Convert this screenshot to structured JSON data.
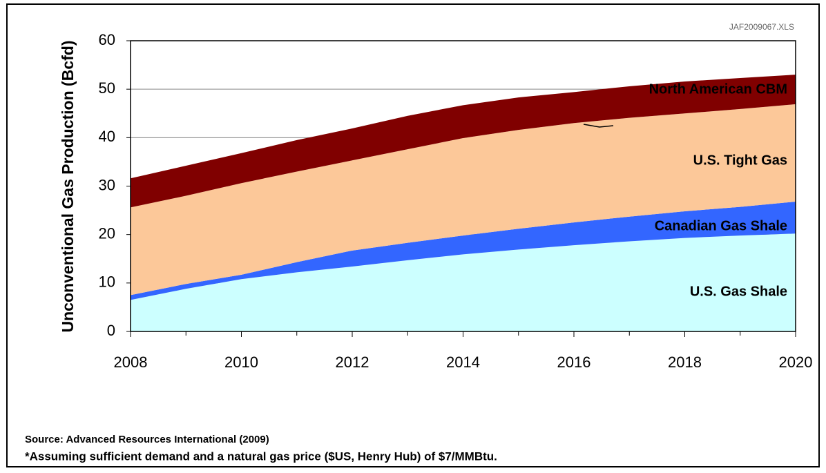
{
  "chart_data": {
    "type": "stacked_area",
    "y_label": "Unconventional Gas Production (Bcfd)",
    "file_note": "JAF2009067.XLS",
    "source": "Source: Advanced Resources International (2009)",
    "footnote": "*Assuming sufficient demand and a natural gas price ($US, Henry Hub) of $7/MMBtu.",
    "x": [
      2008,
      2009,
      2010,
      2011,
      2012,
      2013,
      2014,
      2015,
      2016,
      2017,
      2018,
      2019,
      2020
    ],
    "series": [
      {
        "name": "U.S. Gas Shale",
        "color": "#ccffff",
        "values": [
          6.5,
          8.8,
          10.8,
          12.2,
          13.4,
          14.7,
          15.9,
          16.9,
          17.8,
          18.6,
          19.3,
          19.8,
          20.2
        ]
      },
      {
        "name": "Canadian Gas Shale",
        "color": "#3366ff",
        "values": [
          1.0,
          1.0,
          0.9,
          2.1,
          3.3,
          3.6,
          3.9,
          4.3,
          4.7,
          5.1,
          5.5,
          5.9,
          6.6
        ]
      },
      {
        "name": "U.S. Tight Gas",
        "color": "#fcc899",
        "values": [
          18.1,
          18.2,
          18.9,
          18.7,
          18.6,
          19.3,
          20.1,
          20.4,
          20.5,
          20.4,
          20.2,
          20.2,
          20.1
        ]
      },
      {
        "name": "North American CBM",
        "color": "#800000",
        "values": [
          6.0,
          6.2,
          6.2,
          6.5,
          6.6,
          6.9,
          6.8,
          6.7,
          6.4,
          6.5,
          6.6,
          6.4,
          6.1
        ]
      }
    ],
    "xlim": [
      2008,
      2020
    ],
    "xticks": [
      2008,
      2010,
      2012,
      2014,
      2016,
      2018,
      2020
    ],
    "ylim": [
      0,
      60
    ],
    "yticks": [
      0,
      10,
      20,
      30,
      40,
      50,
      60
    ],
    "grid": true
  }
}
